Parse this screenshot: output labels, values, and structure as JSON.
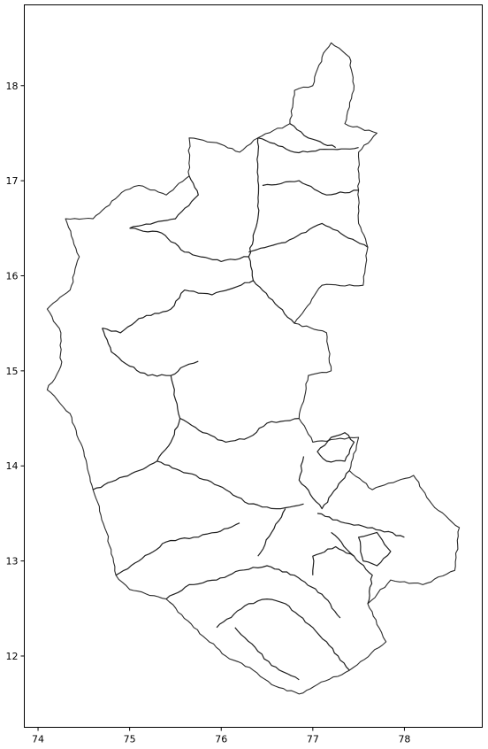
{
  "chart_data": {
    "type": "map",
    "title": "",
    "xlabel": "",
    "ylabel": "",
    "xlim": [
      73.85,
      78.85
    ],
    "ylim": [
      11.25,
      18.85
    ],
    "x_ticks": [
      74,
      75,
      76,
      77,
      78
    ],
    "y_ticks": [
      12,
      13,
      14,
      15,
      16,
      17,
      18
    ],
    "x_tick_labels": [
      "74",
      "75",
      "76",
      "77",
      "78"
    ],
    "y_tick_labels": [
      "12",
      "13",
      "14",
      "15",
      "16",
      "17",
      "18"
    ],
    "grid": false,
    "line_color": "#1e1e1e",
    "outline": [
      [
        77.2,
        18.45
      ],
      [
        77.4,
        18.3
      ],
      [
        77.45,
        18.0
      ],
      [
        77.35,
        17.6
      ],
      [
        77.7,
        17.5
      ],
      [
        77.5,
        17.3
      ],
      [
        77.5,
        16.9
      ],
      [
        77.5,
        16.55
      ],
      [
        77.6,
        16.3
      ],
      [
        77.55,
        15.9
      ],
      [
        77.1,
        15.9
      ],
      [
        76.8,
        15.5
      ],
      [
        77.15,
        15.4
      ],
      [
        77.2,
        15.0
      ],
      [
        76.95,
        14.95
      ],
      [
        76.85,
        14.5
      ],
      [
        77.0,
        14.25
      ],
      [
        77.5,
        14.3
      ],
      [
        77.4,
        13.95
      ],
      [
        77.65,
        13.75
      ],
      [
        78.1,
        13.9
      ],
      [
        78.3,
        13.6
      ],
      [
        78.6,
        13.35
      ],
      [
        78.55,
        12.9
      ],
      [
        78.2,
        12.75
      ],
      [
        77.85,
        12.8
      ],
      [
        77.6,
        12.55
      ],
      [
        77.75,
        12.25
      ],
      [
        77.8,
        12.15
      ],
      [
        77.4,
        11.85
      ],
      [
        77.05,
        11.7
      ],
      [
        76.85,
        11.6
      ],
      [
        76.55,
        11.7
      ],
      [
        76.35,
        11.85
      ],
      [
        76.05,
        12.0
      ],
      [
        75.7,
        12.3
      ],
      [
        75.4,
        12.6
      ],
      [
        75.0,
        12.7
      ],
      [
        74.85,
        12.85
      ],
      [
        74.75,
        13.3
      ],
      [
        74.6,
        13.75
      ],
      [
        74.5,
        14.15
      ],
      [
        74.35,
        14.55
      ],
      [
        74.1,
        14.8
      ],
      [
        74.25,
        15.05
      ],
      [
        74.25,
        15.4
      ],
      [
        74.1,
        15.65
      ],
      [
        74.35,
        15.85
      ],
      [
        74.45,
        16.2
      ],
      [
        74.3,
        16.6
      ],
      [
        74.6,
        16.6
      ],
      [
        74.95,
        16.9
      ],
      [
        75.1,
        16.95
      ],
      [
        75.4,
        16.85
      ],
      [
        75.65,
        17.05
      ],
      [
        75.65,
        17.45
      ],
      [
        75.95,
        17.4
      ],
      [
        76.2,
        17.3
      ],
      [
        76.4,
        17.45
      ],
      [
        76.75,
        17.6
      ],
      [
        76.8,
        17.95
      ],
      [
        77.0,
        18.0
      ],
      [
        77.1,
        18.3
      ]
    ],
    "districts": [
      [
        [
          76.4,
          17.45
        ],
        [
          76.8,
          17.3
        ],
        [
          77.5,
          17.35
        ]
      ],
      [
        [
          76.75,
          17.6
        ],
        [
          76.95,
          17.45
        ],
        [
          77.25,
          17.35
        ]
      ],
      [
        [
          76.45,
          16.95
        ],
        [
          76.85,
          17.0
        ],
        [
          77.15,
          16.85
        ],
        [
          77.5,
          16.9
        ]
      ],
      [
        [
          76.3,
          16.25
        ],
        [
          76.7,
          16.35
        ],
        [
          77.1,
          16.55
        ],
        [
          77.6,
          16.3
        ]
      ],
      [
        [
          75.65,
          17.05
        ],
        [
          75.75,
          16.85
        ],
        [
          75.5,
          16.6
        ],
        [
          75.0,
          16.5
        ]
      ],
      [
        [
          75.0,
          16.5
        ],
        [
          75.35,
          16.45
        ],
        [
          75.6,
          16.25
        ],
        [
          76.0,
          16.15
        ],
        [
          76.3,
          16.2
        ]
      ],
      [
        [
          76.4,
          17.45
        ],
        [
          76.4,
          17.0
        ],
        [
          76.4,
          16.6
        ],
        [
          76.3,
          16.2
        ],
        [
          76.35,
          15.95
        ]
      ],
      [
        [
          74.7,
          15.45
        ],
        [
          74.9,
          15.4
        ],
        [
          75.1,
          15.55
        ],
        [
          75.45,
          15.65
        ],
        [
          75.6,
          15.85
        ],
        [
          75.9,
          15.8
        ],
        [
          76.35,
          15.95
        ],
        [
          76.8,
          15.5
        ]
      ],
      [
        [
          74.7,
          15.45
        ],
        [
          74.8,
          15.2
        ],
        [
          75.0,
          15.05
        ],
        [
          75.2,
          14.95
        ],
        [
          75.45,
          14.95
        ],
        [
          75.6,
          15.05
        ],
        [
          75.75,
          15.1
        ]
      ],
      [
        [
          75.45,
          14.95
        ],
        [
          75.5,
          14.7
        ],
        [
          75.55,
          14.5
        ],
        [
          75.8,
          14.35
        ],
        [
          76.05,
          14.25
        ],
        [
          76.3,
          14.3
        ],
        [
          76.5,
          14.45
        ],
        [
          76.85,
          14.5
        ]
      ],
      [
        [
          75.55,
          14.5
        ],
        [
          75.45,
          14.25
        ],
        [
          75.3,
          14.05
        ],
        [
          75.1,
          13.95
        ],
        [
          74.85,
          13.85
        ],
        [
          74.6,
          13.75
        ]
      ],
      [
        [
          75.3,
          14.05
        ],
        [
          75.55,
          13.95
        ],
        [
          75.85,
          13.85
        ],
        [
          76.05,
          13.75
        ],
        [
          76.3,
          13.6
        ],
        [
          76.6,
          13.55
        ],
        [
          76.9,
          13.6
        ]
      ],
      [
        [
          76.9,
          14.1
        ],
        [
          76.85,
          13.85
        ],
        [
          77.1,
          13.55
        ],
        [
          77.4,
          13.95
        ]
      ],
      [
        [
          77.05,
          13.5
        ],
        [
          77.35,
          13.4
        ],
        [
          77.65,
          13.35
        ],
        [
          78.0,
          13.25
        ]
      ],
      [
        [
          77.2,
          13.3
        ],
        [
          77.45,
          13.05
        ],
        [
          77.65,
          12.85
        ],
        [
          77.6,
          12.55
        ]
      ],
      [
        [
          74.85,
          12.85
        ],
        [
          75.1,
          13.0
        ],
        [
          75.4,
          13.2
        ],
        [
          75.7,
          13.25
        ],
        [
          75.95,
          13.3
        ],
        [
          76.2,
          13.4
        ]
      ],
      [
        [
          75.4,
          12.6
        ],
        [
          75.65,
          12.75
        ],
        [
          75.95,
          12.8
        ],
        [
          76.2,
          12.9
        ],
        [
          76.5,
          12.95
        ],
        [
          76.8,
          12.85
        ],
        [
          77.1,
          12.65
        ],
        [
          77.3,
          12.4
        ]
      ],
      [
        [
          75.95,
          12.3
        ],
        [
          76.3,
          12.55
        ],
        [
          76.5,
          12.6
        ],
        [
          76.7,
          12.55
        ],
        [
          77.0,
          12.3
        ],
        [
          77.15,
          12.15
        ],
        [
          77.4,
          11.85
        ]
      ],
      [
        [
          76.15,
          12.3
        ],
        [
          76.4,
          12.05
        ],
        [
          76.55,
          11.9
        ],
        [
          76.85,
          11.75
        ]
      ],
      [
        [
          76.4,
          13.05
        ],
        [
          76.55,
          13.3
        ],
        [
          76.7,
          13.55
        ]
      ],
      [
        [
          77.0,
          12.85
        ],
        [
          77.0,
          13.05
        ],
        [
          77.25,
          13.15
        ],
        [
          77.45,
          13.05
        ]
      ]
    ],
    "islands": [
      [
        [
          77.2,
          14.3
        ],
        [
          77.35,
          14.35
        ],
        [
          77.45,
          14.25
        ],
        [
          77.35,
          14.05
        ],
        [
          77.15,
          14.05
        ],
        [
          77.05,
          14.15
        ],
        [
          77.2,
          14.3
        ]
      ],
      [
        [
          77.5,
          13.25
        ],
        [
          77.7,
          13.3
        ],
        [
          77.85,
          13.1
        ],
        [
          77.7,
          12.95
        ],
        [
          77.55,
          13.0
        ],
        [
          77.5,
          13.25
        ]
      ]
    ]
  }
}
